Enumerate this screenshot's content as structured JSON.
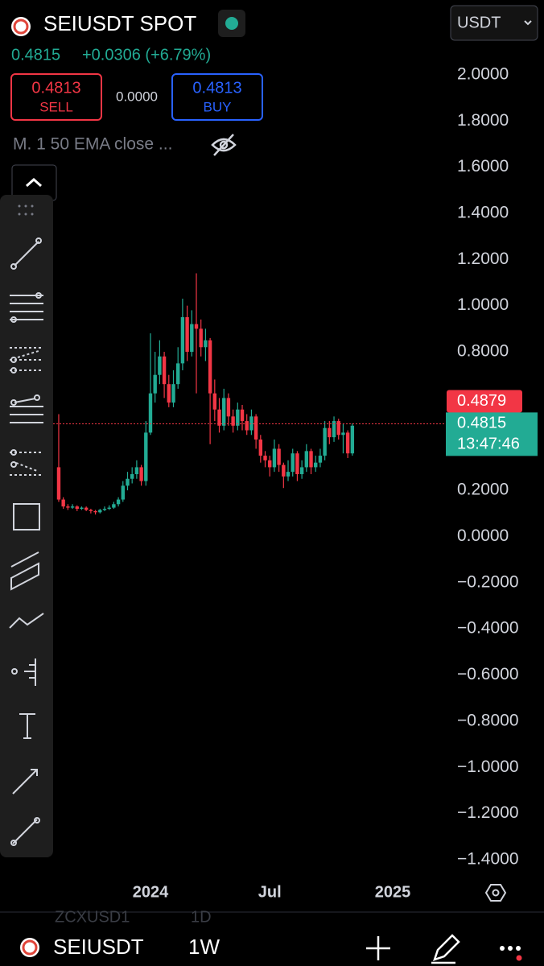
{
  "header": {
    "symbol": "SEIUSDT SPOT",
    "price": "0.4815",
    "change": "+0.0306 (+6.79%)",
    "sell_price": "0.4813",
    "sell_label": "SELL",
    "spread": "0.0000",
    "buy_price": "0.4813",
    "buy_label": "BUY",
    "indicator": "M. 1 50 EMA close ...",
    "currency": "USDT"
  },
  "footer": {
    "ghost_symbol": "ZCXUSD1",
    "ghost_interval": "1D",
    "symbol": "SEIUSDT",
    "interval": "1W"
  },
  "chart_data": {
    "type": "candlestick",
    "up_color": "#22ab94",
    "down_color": "#f23645",
    "open": [
      0.3,
      0.16,
      0.13,
      0.125,
      0.13,
      0.12,
      0.125,
      0.115,
      0.11,
      0.105,
      0.115,
      0.12,
      0.125,
      0.14,
      0.16,
      0.22,
      0.25,
      0.27,
      0.3,
      0.24,
      0.45,
      0.62,
      0.7,
      0.78,
      0.66,
      0.58,
      0.66,
      0.75,
      0.95,
      0.8,
      0.92,
      0.9,
      0.82,
      0.85,
      0.62,
      0.55,
      0.48,
      0.6,
      0.52,
      0.48,
      0.55,
      0.5,
      0.46,
      0.52,
      0.42,
      0.35,
      0.33,
      0.3,
      0.38,
      0.31,
      0.26,
      0.28,
      0.36,
      0.27,
      0.3,
      0.37,
      0.3,
      0.32,
      0.35,
      0.47,
      0.43,
      0.5,
      0.44,
      0.45,
      0.36
    ],
    "high": [
      0.53,
      0.17,
      0.14,
      0.14,
      0.135,
      0.13,
      0.13,
      0.12,
      0.115,
      0.12,
      0.13,
      0.135,
      0.15,
      0.17,
      0.24,
      0.28,
      0.3,
      0.33,
      0.31,
      0.5,
      0.88,
      0.8,
      0.85,
      0.8,
      0.7,
      0.72,
      0.82,
      1.03,
      1.0,
      0.98,
      1.14,
      0.94,
      0.9,
      0.86,
      0.68,
      0.6,
      0.64,
      0.62,
      0.55,
      0.58,
      0.57,
      0.53,
      0.55,
      0.53,
      0.44,
      0.37,
      0.35,
      0.42,
      0.4,
      0.32,
      0.33,
      0.38,
      0.37,
      0.33,
      0.4,
      0.38,
      0.35,
      0.38,
      0.5,
      0.5,
      0.52,
      0.51,
      0.49,
      0.46,
      0.49
    ],
    "low": [
      0.15,
      0.12,
      0.115,
      0.12,
      0.11,
      0.115,
      0.11,
      0.1,
      0.095,
      0.1,
      0.11,
      0.115,
      0.12,
      0.13,
      0.15,
      0.2,
      0.23,
      0.25,
      0.22,
      0.22,
      0.44,
      0.58,
      0.66,
      0.6,
      0.56,
      0.56,
      0.64,
      0.72,
      0.76,
      0.78,
      0.62,
      0.78,
      0.76,
      0.4,
      0.5,
      0.45,
      0.46,
      0.48,
      0.45,
      0.46,
      0.46,
      0.44,
      0.44,
      0.38,
      0.32,
      0.3,
      0.26,
      0.28,
      0.28,
      0.21,
      0.24,
      0.26,
      0.24,
      0.25,
      0.28,
      0.27,
      0.28,
      0.3,
      0.33,
      0.4,
      0.41,
      0.42,
      0.36,
      0.34,
      0.35
    ],
    "close": [
      0.16,
      0.13,
      0.125,
      0.13,
      0.12,
      0.125,
      0.115,
      0.11,
      0.105,
      0.115,
      0.12,
      0.125,
      0.14,
      0.16,
      0.22,
      0.25,
      0.27,
      0.3,
      0.24,
      0.45,
      0.62,
      0.7,
      0.78,
      0.66,
      0.58,
      0.66,
      0.75,
      0.95,
      0.8,
      0.92,
      0.9,
      0.82,
      0.85,
      0.62,
      0.55,
      0.48,
      0.6,
      0.52,
      0.48,
      0.55,
      0.5,
      0.46,
      0.52,
      0.42,
      0.35,
      0.33,
      0.3,
      0.38,
      0.31,
      0.26,
      0.28,
      0.36,
      0.27,
      0.3,
      0.37,
      0.3,
      0.32,
      0.35,
      0.47,
      0.43,
      0.5,
      0.44,
      0.45,
      0.36,
      0.48
    ],
    "ylim": [
      -1.477,
      2.324
    ],
    "yticks": [
      {
        "value": 2,
        "label": "2.0000"
      },
      {
        "value": 1.8,
        "label": "1.8000"
      },
      {
        "value": 1.6,
        "label": "1.6000"
      },
      {
        "value": 1.4,
        "label": "1.4000"
      },
      {
        "value": 1.2,
        "label": "1.2000"
      },
      {
        "value": 1,
        "label": "1.0000"
      },
      {
        "value": 0.8,
        "label": "0.8000"
      },
      {
        "value": 0.2,
        "label": "0.2000"
      },
      {
        "value": 0,
        "label": "0.0000"
      },
      {
        "value": -0.2,
        "label": "−0.2000"
      },
      {
        "value": -0.4,
        "label": "−0.4000"
      },
      {
        "value": -0.6,
        "label": "−0.6000"
      },
      {
        "value": -0.8,
        "label": "−0.8000"
      },
      {
        "value": -1,
        "label": "−1.0000"
      },
      {
        "value": -1.2,
        "label": "−1.2000"
      },
      {
        "value": -1.4,
        "label": "−1.4000"
      }
    ],
    "xlim": [
      -12.8,
      84.2
    ],
    "xticks": [
      {
        "value": 20,
        "label": "2024"
      },
      {
        "value": 46,
        "label": "Jul"
      },
      {
        "value": 72.8,
        "label": "2025"
      }
    ],
    "high_line": {
      "value": 0.4879,
      "color": "#f23645"
    },
    "last_price": {
      "value": 0.4815,
      "countdown": "13:47:46",
      "color": "#22ab94"
    }
  }
}
